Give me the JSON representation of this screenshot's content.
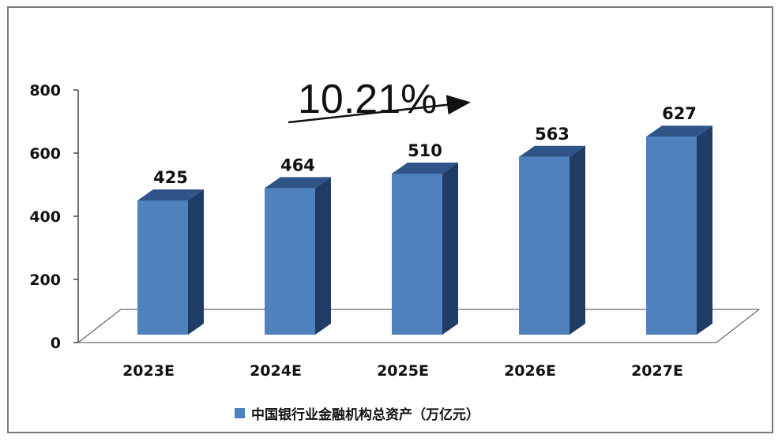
{
  "chart_data": {
    "type": "bar",
    "style": "3d-column",
    "categories": [
      "2023E",
      "2024E",
      "2025E",
      "2026E",
      "2027E"
    ],
    "series": [
      {
        "name": "中国银行业金融机构总资产（万亿元）",
        "values": [
          425,
          464,
          510,
          563,
          627
        ],
        "color": "#4f81bd"
      }
    ],
    "ylim": [
      0,
      800
    ],
    "yticks": [
      0,
      200,
      400,
      600,
      800
    ],
    "data_labels": [
      "425",
      "464",
      "510",
      "563",
      "627"
    ],
    "annotation": {
      "text": "10.21%",
      "type": "growth-arrow"
    },
    "legend_position": "bottom",
    "grid": false
  }
}
